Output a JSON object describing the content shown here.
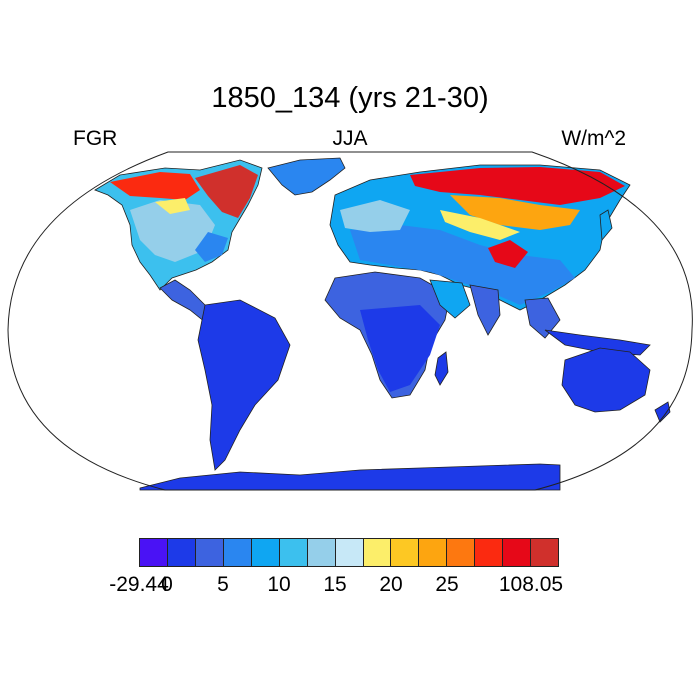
{
  "title": "1850_134 (yrs 21-30)",
  "left_label": "FGR",
  "center_label": "JJA",
  "right_label": "W/m^2",
  "map": {
    "projection": "robinson",
    "land_border_color": "#222222"
  },
  "colorbar": {
    "colors": [
      "#4a12f5",
      "#1d3ae8",
      "#3d63e0",
      "#2a86f0",
      "#0fa6f2",
      "#3cc0ee",
      "#95cfea",
      "#c7e8f7",
      "#fcee6a",
      "#fdc823",
      "#fda510",
      "#fd7810",
      "#fb2a10",
      "#e60818",
      "#d0302c"
    ],
    "labels": [
      {
        "text": "-29.44",
        "boundary": 0
      },
      {
        "text": "0",
        "boundary": 1
      },
      {
        "text": "5",
        "boundary": 3
      },
      {
        "text": "10",
        "boundary": 5
      },
      {
        "text": "15",
        "boundary": 7
      },
      {
        "text": "20",
        "boundary": 9
      },
      {
        "text": "25",
        "boundary": 11
      },
      {
        "text": "108.05",
        "boundary": 14
      }
    ]
  }
}
